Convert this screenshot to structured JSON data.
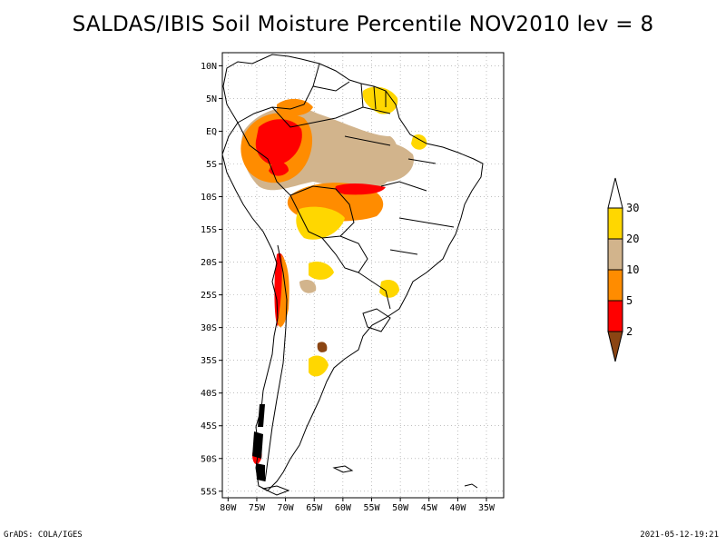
{
  "title": "SALDAS/IBIS Soil Moisture Percentile NOV2010 lev = 8",
  "footer": {
    "left": "GrADS: COLA/IGES",
    "right": "2021-05-12-19:21"
  },
  "map": {
    "lon_range": [
      -81,
      -32
    ],
    "lat_range": [
      -56,
      12
    ],
    "lon_ticks": [
      {
        "value": -80,
        "label": "80W"
      },
      {
        "value": -75,
        "label": "75W"
      },
      {
        "value": -70,
        "label": "70W"
      },
      {
        "value": -65,
        "label": "65W"
      },
      {
        "value": -60,
        "label": "60W"
      },
      {
        "value": -55,
        "label": "55W"
      },
      {
        "value": -50,
        "label": "50W"
      },
      {
        "value": -45,
        "label": "45W"
      },
      {
        "value": -40,
        "label": "40W"
      },
      {
        "value": -35,
        "label": "35W"
      }
    ],
    "lat_ticks": [
      {
        "value": 10,
        "label": "10N"
      },
      {
        "value": 5,
        "label": "5N"
      },
      {
        "value": 0,
        "label": "EQ"
      },
      {
        "value": -5,
        "label": "5S"
      },
      {
        "value": -10,
        "label": "10S"
      },
      {
        "value": -15,
        "label": "15S"
      },
      {
        "value": -20,
        "label": "20S"
      },
      {
        "value": -25,
        "label": "25S"
      },
      {
        "value": -30,
        "label": "30S"
      },
      {
        "value": -35,
        "label": "35S"
      },
      {
        "value": -40,
        "label": "40S"
      },
      {
        "value": -45,
        "label": "45S"
      },
      {
        "value": -50,
        "label": "50S"
      },
      {
        "value": -55,
        "label": "55S"
      }
    ],
    "grid": true,
    "colors": {
      "lt2": "#8b4513",
      "2to5": "#ff0000",
      "5to10": "#ff8c00",
      "10to20": "#d2b48c",
      "20to30": "#ffd700",
      "gt30": "#ffffff",
      "coast": "#000000"
    }
  },
  "colorbar": {
    "labels": [
      "30",
      "20",
      "10",
      "5",
      "2"
    ],
    "colors": [
      "#ffffff",
      "#ffd700",
      "#d2b48c",
      "#ff8c00",
      "#ff0000",
      "#8b4513"
    ]
  }
}
